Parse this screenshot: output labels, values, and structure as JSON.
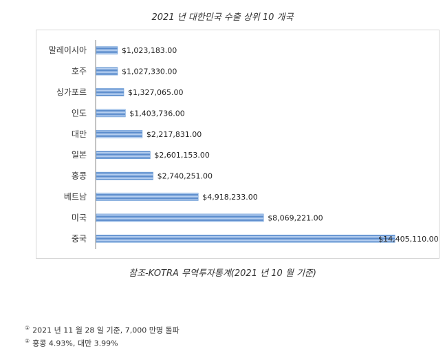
{
  "chart_data": {
    "type": "bar",
    "orientation": "horizontal",
    "title": "2021 년 대한민국 수출 상위 10 개국",
    "categories": [
      "말레이시아",
      "호주",
      "싱가포르",
      "인도",
      "대만",
      "일본",
      "홍콩",
      "베트남",
      "미국",
      "중국"
    ],
    "values": [
      1023183.0,
      1027330.0,
      1327065.0,
      1403736.0,
      2217831.0,
      2601153.0,
      2740251.0,
      4918233.0,
      8069221.0,
      14405110.0
    ],
    "value_labels": [
      "$1,023,183.00",
      "$1,027,330.00",
      "$1,327,065.00",
      "$1,403,736.00",
      "$2,217,831.00",
      "$2,601,153.00",
      "$2,740,251.00",
      "$4,918,233.00",
      "$8,069,221.00",
      "$14,405,110.00"
    ],
    "xlim": [
      0,
      14500000
    ],
    "xlabel": "",
    "ylabel": "",
    "grid": false,
    "legend": "none",
    "bar_color": "#6f9fd8"
  },
  "caption": "참조-KOTRA 무역투자통계(2021 년 10 월  기준)",
  "footnotes": [
    {
      "mark": "①",
      "text": "2021 년 11 월 28 일 기준, 7,000 만명 돌파"
    },
    {
      "mark": "②",
      "text": "홍콩 4.93%, 대만 3.99%"
    }
  ]
}
